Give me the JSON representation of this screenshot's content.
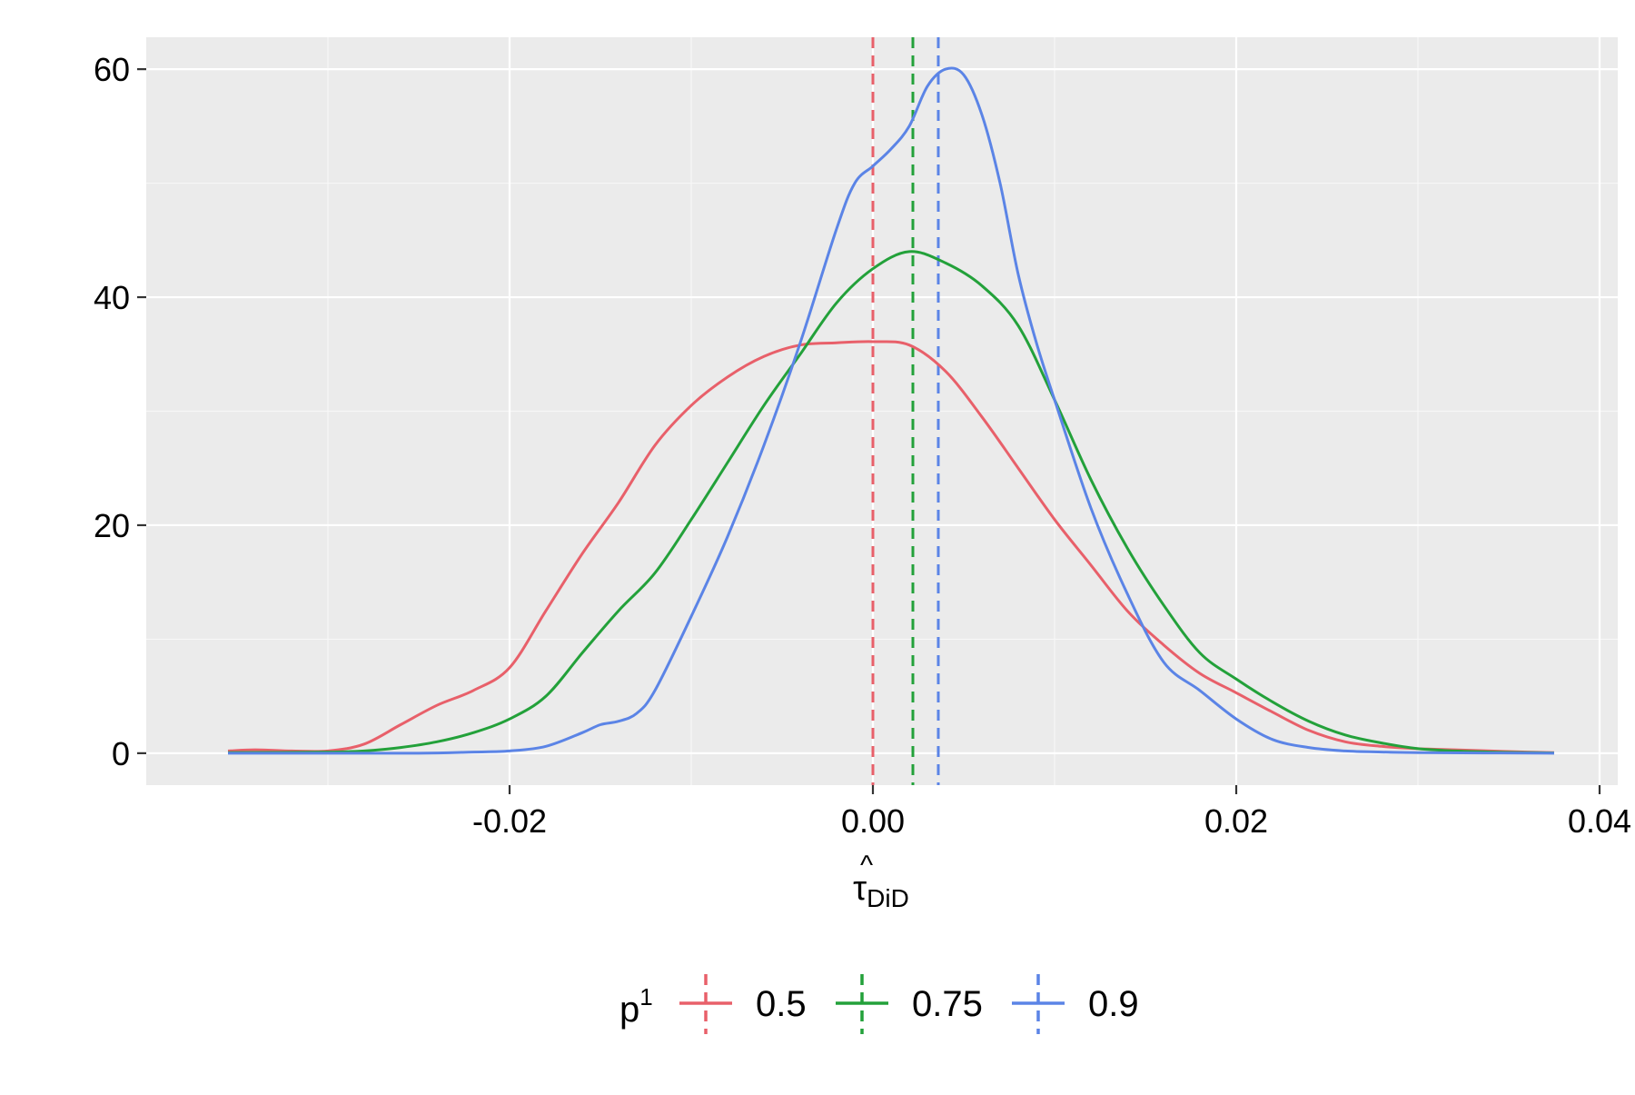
{
  "chart_data": {
    "type": "line",
    "subtype": "density",
    "xlabel": "τ̂DiD",
    "xlabel_parts": {
      "hat": "^",
      "symbol": "τ",
      "subscript": "DiD"
    },
    "ylabel": "",
    "xlim": [
      -0.04,
      0.041
    ],
    "ylim": [
      -2.8,
      62.8
    ],
    "x_ticks": [
      -0.02,
      0.0,
      0.02,
      0.04
    ],
    "x_tick_labels": [
      "-0.02",
      "0.00",
      "0.02",
      "0.04"
    ],
    "y_ticks": [
      0,
      20,
      40,
      60
    ],
    "y_tick_labels": [
      "0",
      "20",
      "40",
      "60"
    ],
    "grid": true,
    "panel_background": "#ebebeb",
    "grid_color": "#ffffff",
    "legend": {
      "title": "p",
      "title_superscript": "1",
      "position": "bottom",
      "entries": [
        "0.5",
        "0.75",
        "0.9"
      ]
    },
    "series": [
      {
        "name": "0.5",
        "color": "#e8606a",
        "mean_line": 0.0,
        "x": [
          -0.0355,
          -0.034,
          -0.032,
          -0.03,
          -0.028,
          -0.026,
          -0.024,
          -0.022,
          -0.02,
          -0.018,
          -0.016,
          -0.014,
          -0.012,
          -0.01,
          -0.008,
          -0.006,
          -0.004,
          -0.002,
          0.0,
          0.002,
          0.004,
          0.006,
          0.008,
          0.01,
          0.012,
          0.014,
          0.016,
          0.018,
          0.02,
          0.022,
          0.024,
          0.026,
          0.028,
          0.03,
          0.032,
          0.034,
          0.036,
          0.0375
        ],
        "values": [
          0.2,
          0.3,
          0.2,
          0.2,
          0.8,
          2.5,
          4.2,
          5.5,
          7.5,
          12.5,
          17.5,
          22.0,
          27.0,
          30.5,
          33.0,
          34.8,
          35.8,
          36.0,
          36.1,
          35.8,
          33.5,
          29.5,
          25.0,
          20.5,
          16.5,
          12.5,
          9.5,
          7.0,
          5.3,
          3.6,
          2.0,
          1.0,
          0.6,
          0.4,
          0.3,
          0.2,
          0.1,
          0.05
        ]
      },
      {
        "name": "0.75",
        "color": "#23a13a",
        "mean_line": 0.0022,
        "x": [
          -0.0355,
          -0.03,
          -0.028,
          -0.026,
          -0.024,
          -0.022,
          -0.02,
          -0.018,
          -0.016,
          -0.014,
          -0.012,
          -0.01,
          -0.008,
          -0.006,
          -0.004,
          -0.002,
          0.0,
          0.002,
          0.004,
          0.006,
          0.008,
          0.01,
          0.012,
          0.014,
          0.016,
          0.018,
          0.02,
          0.022,
          0.024,
          0.026,
          0.028,
          0.03,
          0.032,
          0.034,
          0.036,
          0.0375
        ],
        "values": [
          0.05,
          0.1,
          0.2,
          0.5,
          1.0,
          1.8,
          3.0,
          5.0,
          8.8,
          12.5,
          15.8,
          20.5,
          25.5,
          30.5,
          35.0,
          39.5,
          42.5,
          44.0,
          43.0,
          41.0,
          37.5,
          31.0,
          24.0,
          18.0,
          13.0,
          8.8,
          6.5,
          4.5,
          2.8,
          1.6,
          0.9,
          0.4,
          0.2,
          0.1,
          0.05,
          0.02
        ]
      },
      {
        "name": "0.9",
        "color": "#5b84e6",
        "mean_line": 0.0036,
        "x": [
          -0.0355,
          -0.03,
          -0.025,
          -0.022,
          -0.02,
          -0.018,
          -0.016,
          -0.015,
          -0.014,
          -0.013,
          -0.012,
          -0.01,
          -0.008,
          -0.006,
          -0.004,
          -0.002,
          -0.001,
          0.0,
          0.001,
          0.002,
          0.003,
          0.004,
          0.005,
          0.006,
          0.007,
          0.008,
          0.009,
          0.01,
          0.012,
          0.014,
          0.016,
          0.018,
          0.02,
          0.022,
          0.024,
          0.026,
          0.028,
          0.03,
          0.0375
        ],
        "values": [
          0.0,
          0.0,
          0.0,
          0.1,
          0.2,
          0.6,
          1.8,
          2.5,
          2.8,
          3.5,
          5.5,
          12.0,
          19.0,
          27.0,
          36.0,
          46.0,
          50.0,
          51.5,
          53.0,
          55.0,
          58.5,
          60.0,
          59.5,
          56.0,
          50.0,
          42.0,
          36.0,
          31.0,
          21.5,
          14.0,
          8.0,
          5.5,
          3.0,
          1.2,
          0.5,
          0.2,
          0.1,
          0.05,
          0.0
        ]
      }
    ]
  }
}
